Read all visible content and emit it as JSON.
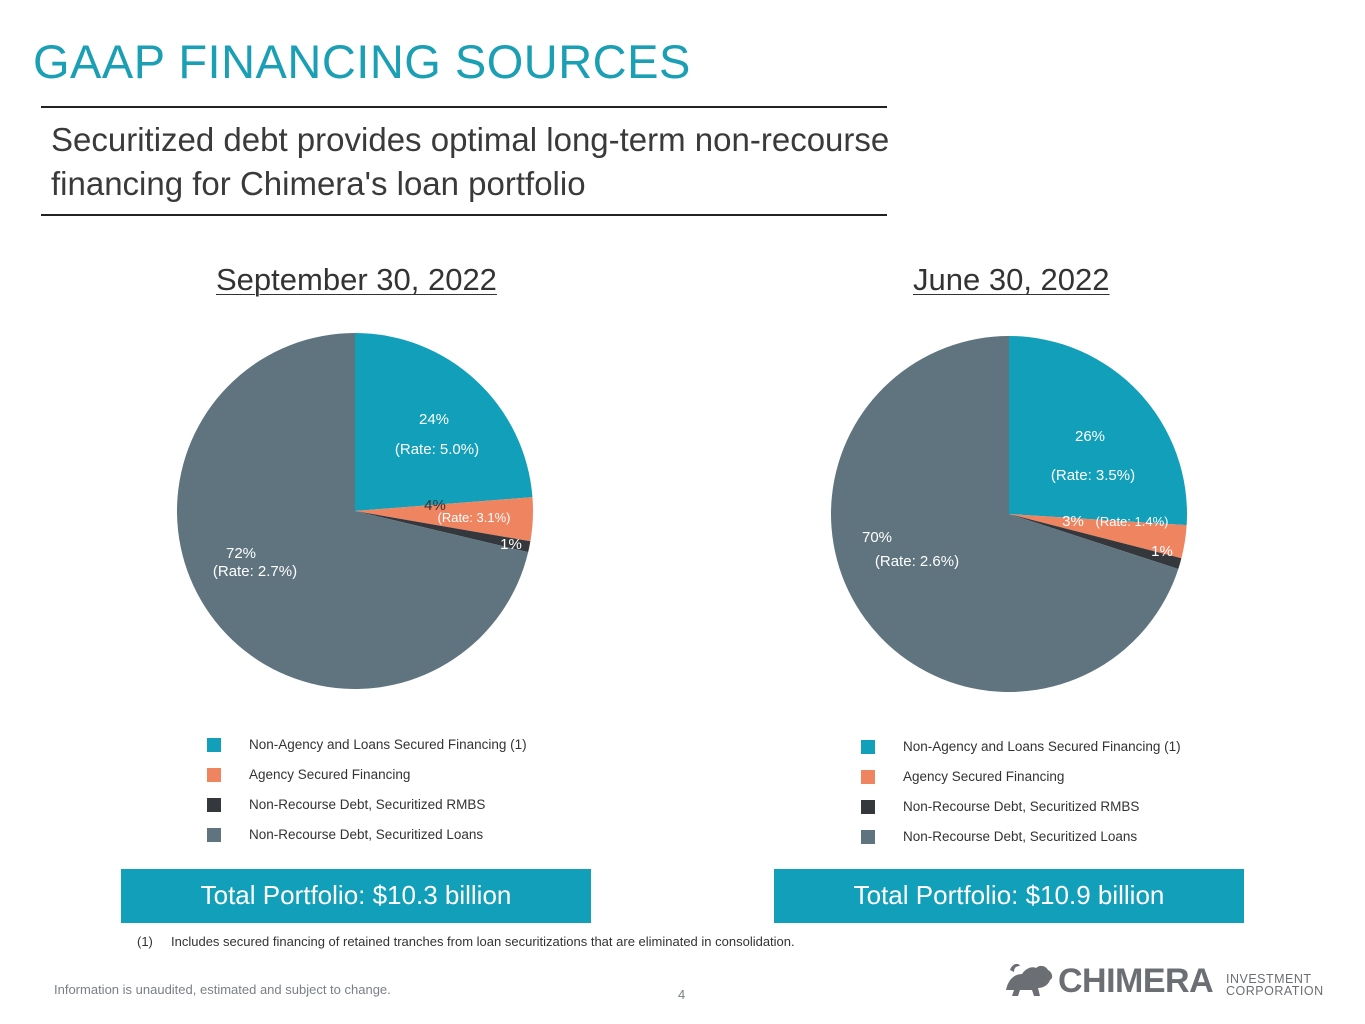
{
  "colors": {
    "accent": "#129fba",
    "title": "#1a9fb5",
    "teal": "#129fba",
    "orange": "#ef8461",
    "dark": "#34383d",
    "slate": "#5f747f"
  },
  "header": {
    "title": "GAAP FINANCING SOURCES",
    "subtitle_line1": "Securitized debt provides optimal long-term non-recourse",
    "subtitle_line2": "financing for Chimera's loan portfolio"
  },
  "chart_data": [
    {
      "type": "pie",
      "title": "September 30, 2022",
      "categories": [
        "Non-Agency and Loans Secured Financing (1)",
        "Agency Secured Financing",
        "Non-Recourse Debt, Securitized RMBS",
        "Non-Recourse Debt, Securitized Loans"
      ],
      "values": [
        24,
        4,
        1,
        72
      ],
      "value_labels": [
        "24%",
        "4%",
        "1%",
        "72%"
      ],
      "rate_labels": [
        "(Rate: 5.0%)",
        "(Rate: 3.1%)",
        "",
        "(Rate: 2.7%)"
      ],
      "colors": [
        "#129fba",
        "#ef8461",
        "#34383d",
        "#5f747f"
      ],
      "legend_position": "bottom",
      "total": "Total Portfolio: $10.3 billion"
    },
    {
      "type": "pie",
      "title": "June 30, 2022",
      "categories": [
        "Non-Agency and Loans Secured Financing (1)",
        "Agency Secured Financing",
        "Non-Recourse Debt, Securitized RMBS",
        "Non-Recourse Debt, Securitized Loans"
      ],
      "values": [
        26,
        3,
        1,
        70
      ],
      "value_labels": [
        "26%",
        "3%",
        "1%",
        "70%"
      ],
      "rate_labels": [
        "(Rate: 3.5%)",
        "(Rate: 1.4%)",
        "",
        "(Rate: 2.6%)"
      ],
      "colors": [
        "#129fba",
        "#ef8461",
        "#34383d",
        "#5f747f"
      ],
      "legend_position": "bottom",
      "total": "Total Portfolio: $10.9 billion"
    }
  ],
  "footnote": {
    "number": "(1)",
    "text": "Includes secured financing of retained tranches from loan securitizations that are eliminated in consolidation."
  },
  "footer": {
    "disclaimer": "Information is unaudited, estimated and subject to change.",
    "page_number": "4"
  },
  "logo": {
    "icon": "chimera-creature-icon",
    "word": "CHIMERA",
    "sub_line1": "INVESTMENT",
    "sub_line2": "CORPORATION"
  }
}
